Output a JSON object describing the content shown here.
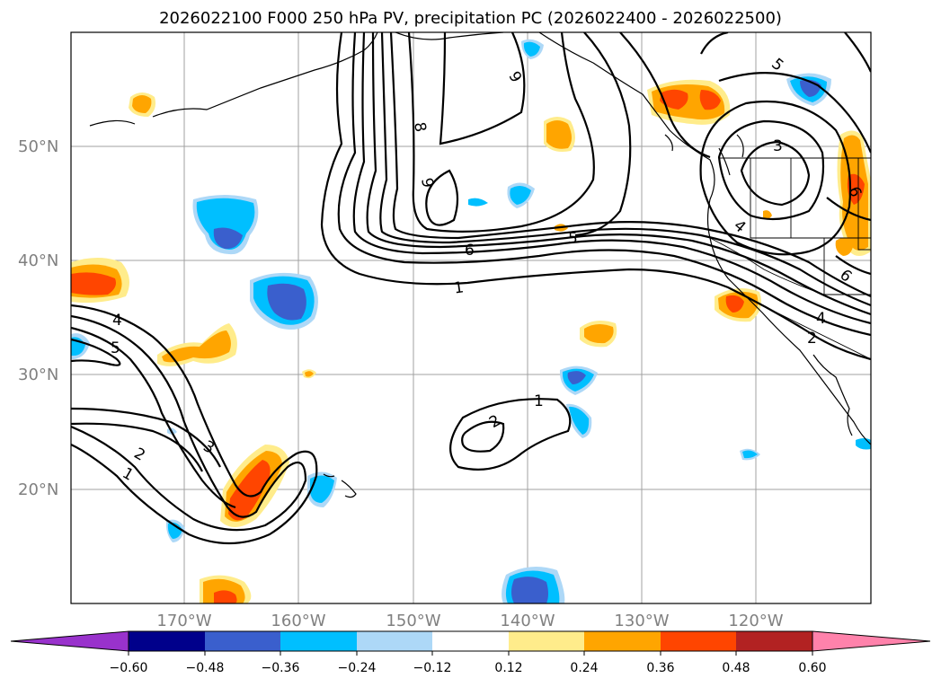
{
  "title": "2026022100 F000 250 hPa PV, precipitation PC (2026022400 - 2026022500)",
  "map": {
    "lat_labels": [
      "50°N",
      "40°N",
      "30°N",
      "20°N"
    ],
    "lon_labels": [
      "170°W",
      "160°W",
      "150°W",
      "140°W",
      "130°W",
      "120°W"
    ],
    "pv_contour_labels": [
      "1",
      "2",
      "3",
      "4",
      "5",
      "6",
      "8",
      "9",
      "9",
      "5",
      "6",
      "1",
      "4",
      "2",
      "3",
      "4",
      "5",
      "6",
      "1",
      "2",
      "2",
      "1",
      "3"
    ],
    "shading_colors": {
      "dark_purple": "#9932cc",
      "navy": "#00008b",
      "royal_blue": "#3a5fcd",
      "deep_sky_blue": "#00bfff",
      "light_blue": "#add8f7",
      "white": "#ffffff",
      "light_yellow": "#ffec8b",
      "orange": "#ffa500",
      "orange_red": "#ff4500",
      "firebrick": "#b22222",
      "pink": "#ff82ab"
    }
  },
  "colorbar": {
    "ticks": [
      "−0.60",
      "−0.48",
      "−0.36",
      "−0.24",
      "−0.12",
      "0.12",
      "0.24",
      "0.36",
      "0.48",
      "0.60"
    ],
    "colors": [
      "#9932cc",
      "#00008b",
      "#3a5fcd",
      "#00bfff",
      "#add8f7",
      "#ffffff",
      "#ffec8b",
      "#ffa500",
      "#ff4500",
      "#b22222",
      "#ff82ab"
    ]
  }
}
